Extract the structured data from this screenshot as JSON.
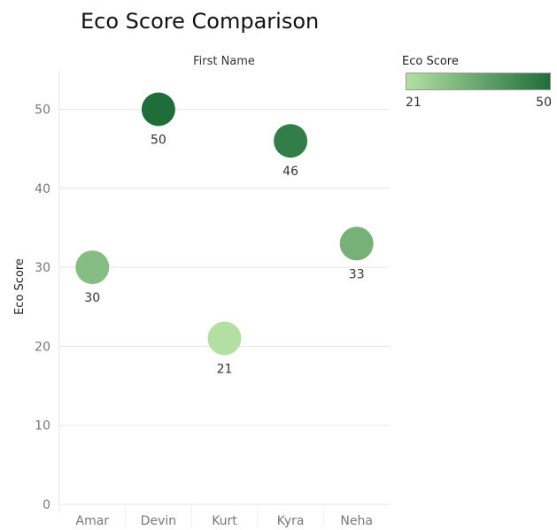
{
  "chart_data": {
    "type": "scatter",
    "title": "Eco Score Comparison",
    "column_header": "First Name",
    "ylabel": "Eco Score",
    "categories": [
      "Amar",
      "Devin",
      "Kurt",
      "Kyra",
      "Neha"
    ],
    "values": [
      30,
      50,
      21,
      46,
      33
    ],
    "data_labels": [
      "30",
      "50",
      "21",
      "46",
      "33"
    ],
    "yticks": [
      0,
      10,
      20,
      30,
      40,
      50
    ],
    "ytick_labels": [
      "0",
      "10",
      "20",
      "30",
      "40",
      "50"
    ],
    "ylim": [
      0,
      55
    ],
    "grid": "horizontal",
    "legend": {
      "title": "Eco Score",
      "min_label": "21",
      "max_label": "50",
      "min": 21,
      "max": 50,
      "color_low": "#b3e0a2",
      "color_high": "#1f6e3a",
      "placement": "top-right"
    }
  }
}
